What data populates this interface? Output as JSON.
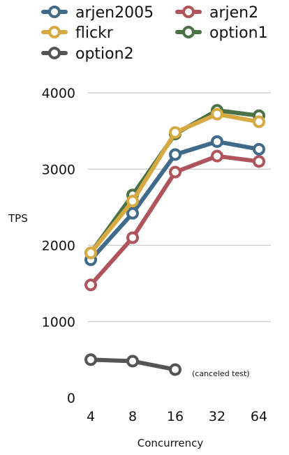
{
  "chart_data": {
    "type": "line",
    "title": "",
    "xlabel": "Concurrency",
    "ylabel": "TPS",
    "categories": [
      "4",
      "8",
      "16",
      "32",
      "64"
    ],
    "ylim": [
      0,
      4000
    ],
    "yticks": [
      0,
      1000,
      2000,
      3000,
      4000
    ],
    "grid": true,
    "legend_position": "top",
    "series": [
      {
        "name": "arjen2005",
        "color": "#3f6a89",
        "values": [
          1810,
          2420,
          3190,
          3360,
          3260
        ]
      },
      {
        "name": "arjen2",
        "color": "#b0545c",
        "values": [
          1480,
          2100,
          2960,
          3170,
          3100
        ]
      },
      {
        "name": "flickr",
        "color": "#d7a942",
        "values": [
          1900,
          2580,
          3480,
          3720,
          3620
        ]
      },
      {
        "name": "option1",
        "color": "#4a7245",
        "values": [
          1900,
          2660,
          3460,
          3770,
          3700
        ]
      },
      {
        "name": "option2",
        "color": "#555555",
        "values": [
          500,
          480,
          370,
          null,
          null
        ]
      }
    ],
    "annotations": [
      {
        "text": "(canceled test)",
        "series": "option2",
        "x": "16"
      }
    ]
  }
}
